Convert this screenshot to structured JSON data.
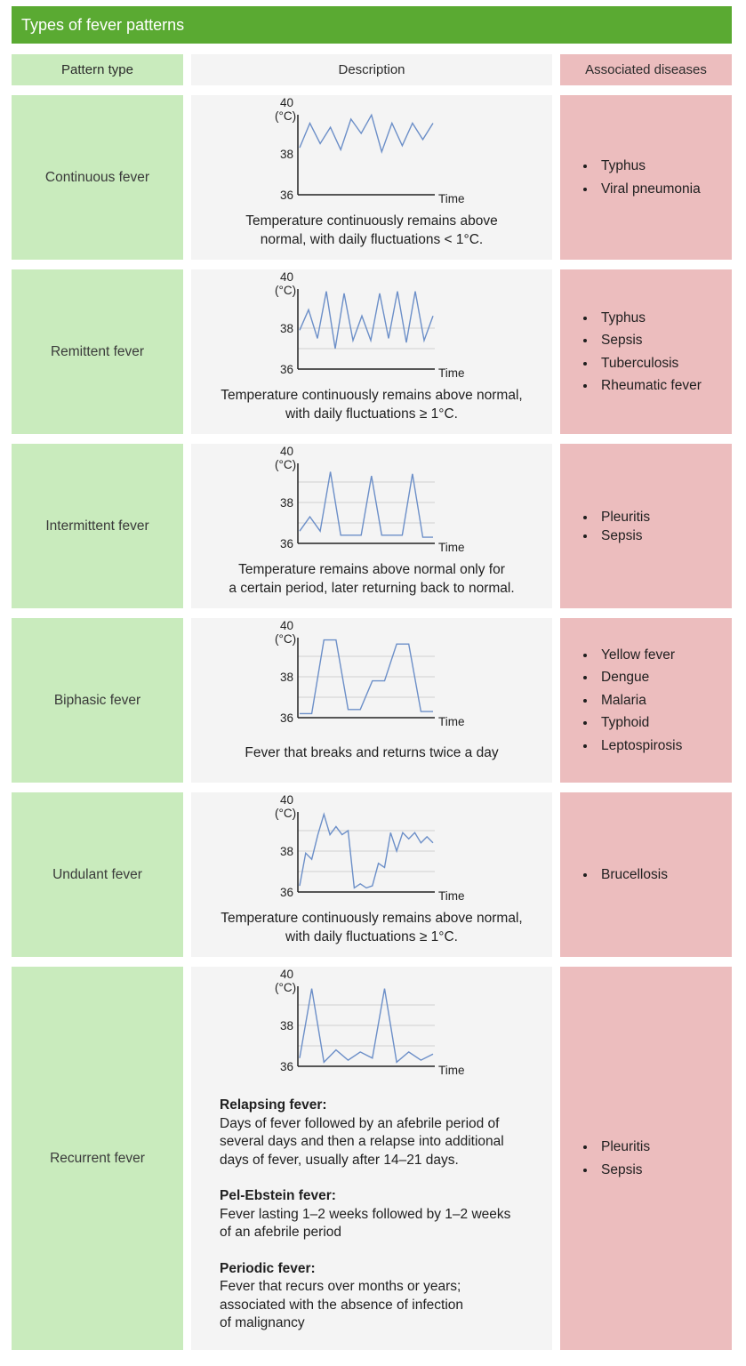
{
  "title": "Types of fever patterns",
  "headers": {
    "pattern": "Pattern type",
    "description": "Description",
    "associated": "Associated diseases"
  },
  "axis": {
    "unit": "(°C)",
    "xlabel": "Time",
    "ylim": [
      36,
      40
    ],
    "yticks": [
      40,
      38,
      36
    ]
  },
  "rows": [
    {
      "pattern": "Continuous fever",
      "description": [
        "Temperature continuously remains above",
        "normal, with daily fluctuations < 1°C."
      ],
      "diseases": [
        "Typhus",
        "Viral pneumonia"
      ]
    },
    {
      "pattern": "Remittent fever",
      "description": [
        "Temperature continuously remains above normal,",
        "with daily fluctuations ≥ 1°C."
      ],
      "diseases": [
        "Typhus",
        "Sepsis",
        "Tuberculosis",
        "Rheumatic fever"
      ]
    },
    {
      "pattern": "Intermittent fever",
      "description": [
        "Temperature remains above normal only for",
        "a certain period, later returning back to normal."
      ],
      "diseases": [
        "Pleuritis",
        "Sepsis"
      ]
    },
    {
      "pattern": "Biphasic fever",
      "description": [
        "Fever that breaks and returns twice a day"
      ],
      "diseases": [
        "Yellow fever",
        "Dengue",
        "Malaria",
        "Typhoid",
        "Leptospirosis"
      ]
    },
    {
      "pattern": "Undulant fever",
      "description": [
        "Temperature continuously remains above normal,",
        "with daily fluctuations ≥ 1°C."
      ],
      "diseases": [
        "Brucellosis"
      ]
    },
    {
      "pattern": "Recurrent fever",
      "subtypes": [
        {
          "name": "Relapsing fever:",
          "lines": [
            "Days of fever followed by an afebrile period of",
            "several days and then a relapse into additional",
            "days of fever, usually after 14–21 days."
          ]
        },
        {
          "name": "Pel-Ebstein fever:",
          "lines": [
            "Fever lasting 1–2 weeks followed by 1–2 weeks",
            "of an afebrile period"
          ]
        },
        {
          "name": "Periodic fever:",
          "lines": [
            "Fever that recurs over months or years;",
            "associated with the absence of infection",
            "of malignancy"
          ]
        }
      ],
      "diseases": [
        "Pleuritis",
        "Sepsis"
      ]
    }
  ],
  "chart_data": [
    {
      "type": "line",
      "pattern": "Continuous fever",
      "ylim": [
        36,
        40
      ],
      "grid": false,
      "y": [
        38.3,
        39.5,
        38.5,
        39.3,
        38.2,
        39.7,
        39.0,
        39.9,
        38.1,
        39.5,
        38.4,
        39.5,
        38.7,
        39.5
      ]
    },
    {
      "type": "line",
      "pattern": "Remittent fever",
      "ylim": [
        36,
        40
      ],
      "grid": true,
      "y": [
        37.9,
        38.9,
        37.5,
        39.8,
        37.0,
        39.7,
        37.4,
        38.6,
        37.4,
        39.7,
        37.5,
        39.8,
        37.3,
        39.8,
        37.4,
        38.6
      ]
    },
    {
      "type": "line",
      "pattern": "Intermittent fever",
      "ylim": [
        36,
        40
      ],
      "grid": true,
      "y": [
        36.6,
        37.3,
        36.6,
        39.5,
        36.4,
        36.4,
        36.4,
        39.3,
        36.4,
        36.4,
        36.4,
        39.4,
        36.3,
        36.3
      ]
    },
    {
      "type": "line",
      "pattern": "Biphasic fever",
      "ylim": [
        36,
        40
      ],
      "grid": true,
      "y": [
        36.2,
        36.2,
        39.8,
        39.8,
        36.4,
        36.4,
        37.8,
        37.8,
        39.6,
        39.6,
        36.3,
        36.3
      ]
    },
    {
      "type": "line",
      "pattern": "Undulant fever",
      "ylim": [
        36,
        40
      ],
      "grid": true,
      "y": [
        36.3,
        37.9,
        37.6,
        38.8,
        39.8,
        38.8,
        39.2,
        38.8,
        39.0,
        36.2,
        36.4,
        36.2,
        36.3,
        37.4,
        37.2,
        38.9,
        38.0,
        38.9,
        38.6,
        38.9,
        38.4,
        38.7,
        38.4
      ]
    },
    {
      "type": "line",
      "pattern": "Recurrent fever",
      "ylim": [
        36,
        40
      ],
      "grid": true,
      "y": [
        36.4,
        39.8,
        36.2,
        36.8,
        36.3,
        36.7,
        36.4,
        39.8,
        36.2,
        36.7,
        36.3,
        36.6
      ]
    }
  ]
}
